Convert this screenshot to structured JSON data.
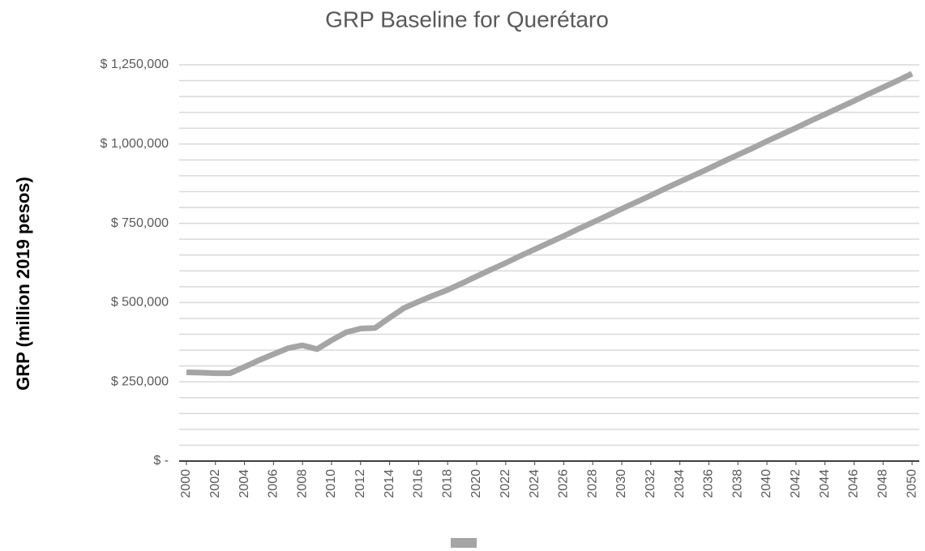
{
  "chart_data": {
    "type": "line",
    "title": "GRP Baseline for Querétaro",
    "y_label": "GRP (million 2019 pesos)",
    "x": [
      2000,
      2001,
      2002,
      2003,
      2004,
      2005,
      2006,
      2007,
      2008,
      2009,
      2010,
      2011,
      2012,
      2013,
      2014,
      2015,
      2016,
      2017,
      2018,
      2019,
      2020,
      2021,
      2022,
      2023,
      2024,
      2025,
      2026,
      2027,
      2028,
      2029,
      2030,
      2031,
      2032,
      2033,
      2034,
      2035,
      2036,
      2037,
      2038,
      2039,
      2040,
      2041,
      2042,
      2043,
      2044,
      2045,
      2046,
      2047,
      2048,
      2049,
      2050
    ],
    "series": [
      {
        "color": "#a5a5a5",
        "values": [
          280000,
          279000,
          277000,
          277000,
          297000,
          318000,
          337000,
          356000,
          365000,
          353000,
          381000,
          406000,
          418000,
          420000,
          452000,
          483000,
          503000,
          522000,
          540000,
          561000,
          583000,
          604000,
          625000,
          647000,
          668000,
          689000,
          710000,
          732000,
          753000,
          774000,
          796000,
          817000,
          838000,
          860000,
          881000,
          902000,
          923000,
          945000,
          966000,
          987000,
          1009000,
          1030000,
          1051000,
          1073000,
          1094000,
          1115000,
          1136000,
          1158000,
          1179000,
          1200000,
          1222000
        ]
      }
    ],
    "xlim": [
      1999.5,
      2050.5
    ],
    "xticks": [
      2000,
      2002,
      2004,
      2006,
      2008,
      2010,
      2012,
      2014,
      2016,
      2018,
      2020,
      2022,
      2024,
      2026,
      2028,
      2030,
      2032,
      2034,
      2036,
      2038,
      2040,
      2042,
      2044,
      2046,
      2048,
      2050
    ],
    "ylim": [
      0,
      1250000
    ],
    "yticks": [
      {
        "value": 0,
        "label": "$ -"
      },
      {
        "value": 250000,
        "label": "$ 250,000"
      },
      {
        "value": 500000,
        "label": "$ 500,000"
      },
      {
        "value": 750000,
        "label": "$ 750,000"
      },
      {
        "value": 1000000,
        "label": "$ 1,000,000"
      },
      {
        "value": 1250000,
        "label": "$ 1,250,000"
      }
    ],
    "minor_gridlines": [
      50000,
      100000,
      150000,
      200000,
      300000,
      350000,
      400000,
      450000,
      550000,
      600000,
      650000,
      700000,
      800000,
      850000,
      900000,
      950000,
      1050000,
      1100000,
      1150000,
      1200000
    ],
    "grid": true
  }
}
